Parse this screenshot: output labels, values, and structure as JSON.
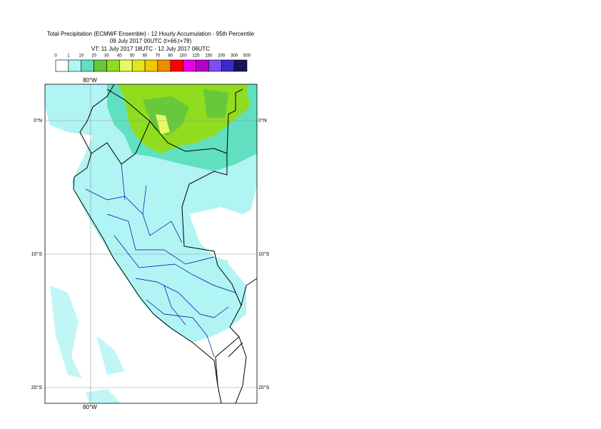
{
  "header": {
    "title": "Total Precipitation (ECMWF Ensemble) - 12 Hourly Accumulation - 95th Percentile",
    "base_time": "09 July 2017 00UTC (t+66,t+78)",
    "valid_time": "VT: 11 July 2017 18UTC - 12 July 2017 06UTC"
  },
  "legend": {
    "labels": [
      "0",
      "1",
      "10",
      "20",
      "30",
      "40",
      "50",
      "60",
      "70",
      "80",
      "100",
      "125",
      "150",
      "200",
      "300",
      "500"
    ],
    "colors": [
      "#ffffff",
      "#b0f4f4",
      "#60e0c0",
      "#66c83a",
      "#90dc1e",
      "#e6fa64",
      "#e6e61e",
      "#f0c800",
      "#f08c00",
      "#ff0000",
      "#e600e6",
      "#b400c8",
      "#7850f0",
      "#3c28c8",
      "#14145a"
    ]
  },
  "map": {
    "lon_top": "80°W",
    "lon_bottom": "80°W",
    "lat_labels": [
      "0°N",
      "10°S",
      "20°S"
    ]
  }
}
